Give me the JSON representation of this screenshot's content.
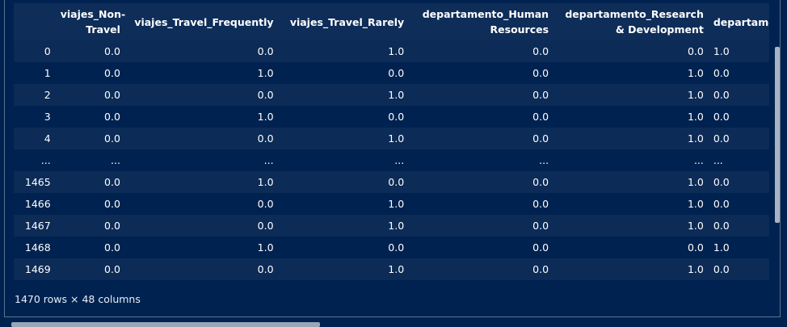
{
  "table": {
    "columns": [
      "",
      "viajes_Non-Travel",
      "viajes_Travel_Frequently",
      "viajes_Travel_Rarely",
      "departamento_Human Resources",
      "departamento_Research & Development",
      "departamento_Sales"
    ],
    "rows": [
      [
        "0",
        "0.0",
        "0.0",
        "1.0",
        "0.0",
        "0.0",
        "1.0"
      ],
      [
        "1",
        "0.0",
        "1.0",
        "0.0",
        "0.0",
        "1.0",
        "0.0"
      ],
      [
        "2",
        "0.0",
        "0.0",
        "1.0",
        "0.0",
        "1.0",
        "0.0"
      ],
      [
        "3",
        "0.0",
        "1.0",
        "0.0",
        "0.0",
        "1.0",
        "0.0"
      ],
      [
        "4",
        "0.0",
        "0.0",
        "1.0",
        "0.0",
        "1.0",
        "0.0"
      ],
      [
        "...",
        "...",
        "...",
        "...",
        "...",
        "...",
        "..."
      ],
      [
        "1465",
        "0.0",
        "1.0",
        "0.0",
        "0.0",
        "1.0",
        "0.0"
      ],
      [
        "1466",
        "0.0",
        "0.0",
        "1.0",
        "0.0",
        "1.0",
        "0.0"
      ],
      [
        "1467",
        "0.0",
        "0.0",
        "1.0",
        "0.0",
        "1.0",
        "0.0"
      ],
      [
        "1468",
        "0.0",
        "1.0",
        "0.0",
        "0.0",
        "0.0",
        "1.0"
      ],
      [
        "1469",
        "0.0",
        "0.0",
        "1.0",
        "0.0",
        "1.0",
        "0.0"
      ]
    ]
  },
  "caption": "1470 rows × 48 columns"
}
